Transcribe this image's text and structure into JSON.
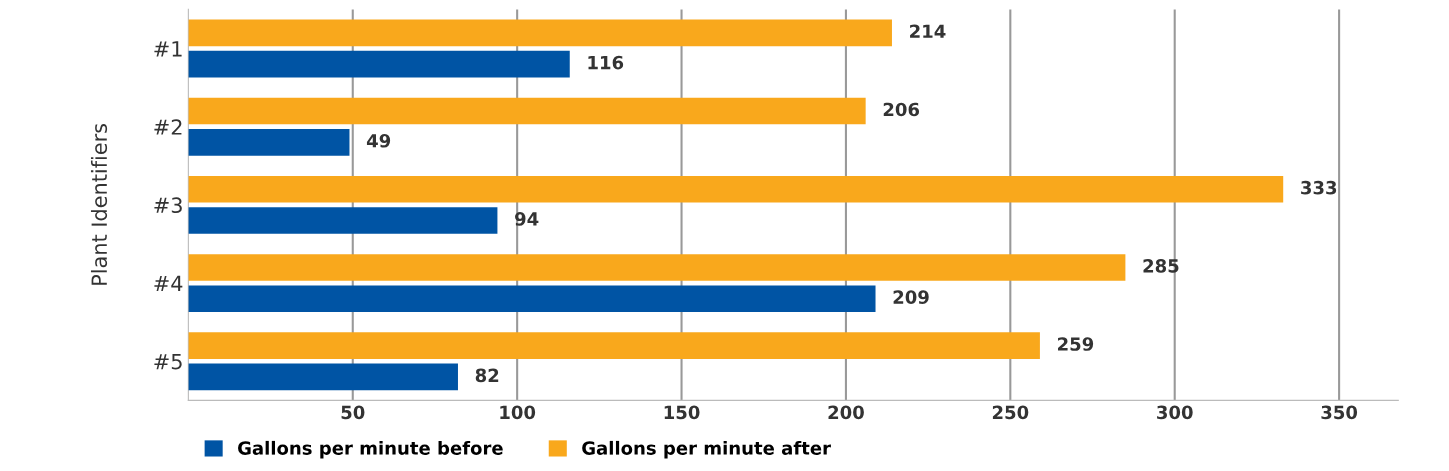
{
  "chart_data": {
    "type": "bar",
    "orientation": "horizontal",
    "ylabel": "Plant Identifiers",
    "categories": [
      "#1",
      "#2",
      "#3",
      "#4",
      "#5"
    ],
    "series": [
      {
        "name": "Gallons per minute before",
        "color": "#0054a4",
        "values": [
          116,
          49,
          94,
          209,
          82
        ]
      },
      {
        "name": "Gallons per minute after",
        "color": "#f9a81c",
        "values": [
          214,
          206,
          333,
          285,
          259
        ]
      }
    ],
    "xlim": [
      0,
      368
    ],
    "xticks": [
      50,
      100,
      150,
      200,
      250,
      300,
      350
    ],
    "grid": "x",
    "legend": "bottom",
    "data_labels": true
  }
}
